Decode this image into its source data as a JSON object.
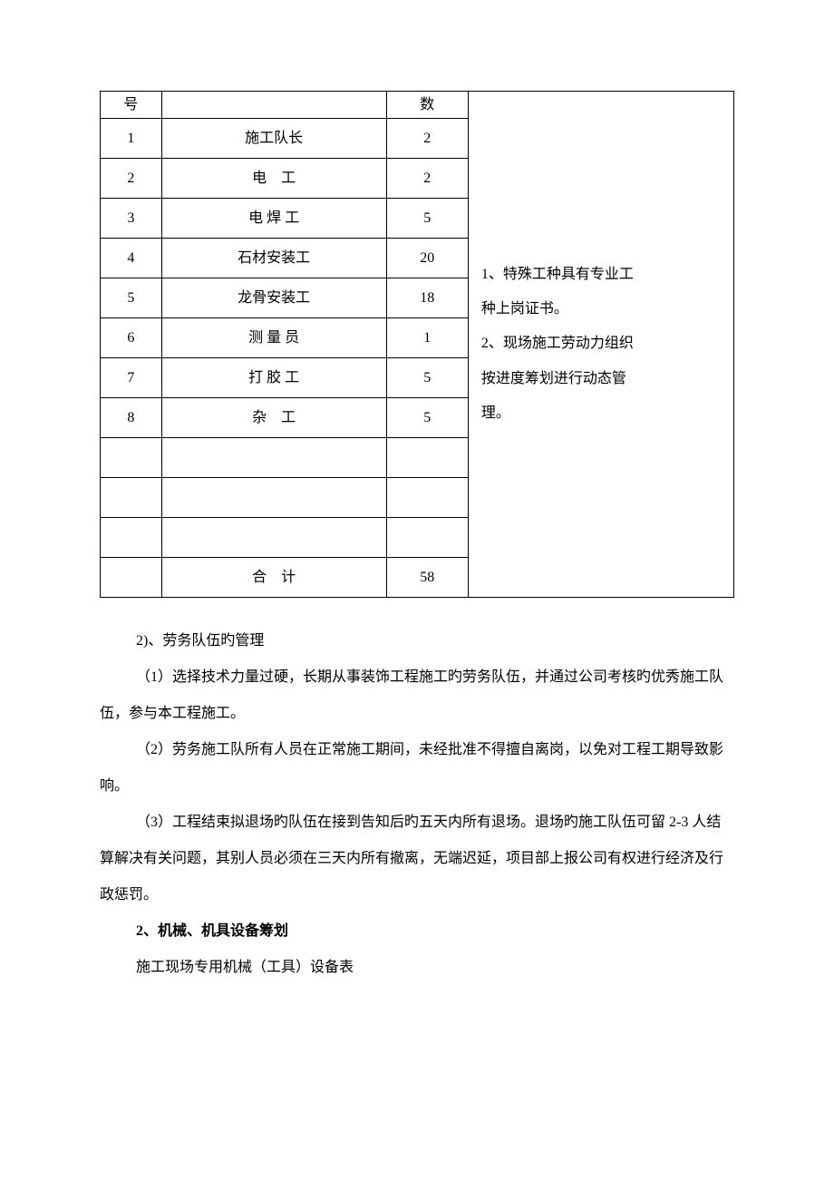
{
  "table": {
    "header": {
      "col1": "号",
      "col3": "数"
    },
    "rows": [
      {
        "num": "1",
        "role": "施工队长",
        "count": "2"
      },
      {
        "num": "2",
        "role": "电　工",
        "count": "2"
      },
      {
        "num": "3",
        "role": "电 焊 工",
        "count": "5"
      },
      {
        "num": "4",
        "role": "石材安装工",
        "count": "20"
      },
      {
        "num": "5",
        "role": "龙骨安装工",
        "count": "18"
      },
      {
        "num": "6",
        "role": "测 量 员",
        "count": "1"
      },
      {
        "num": "7",
        "role": "打 胶 工",
        "count": "5"
      },
      {
        "num": "8",
        "role": "杂　工",
        "count": "5"
      },
      {
        "num": "",
        "role": "",
        "count": ""
      },
      {
        "num": "",
        "role": "",
        "count": ""
      },
      {
        "num": "",
        "role": "",
        "count": ""
      }
    ],
    "total": {
      "label": "合　计",
      "value": "58"
    },
    "note": "1、特殊工种具有专业工种上岗证书。\n2、现场施工劳动力组织按进度筹划进行动态管理。",
    "note_line1": "1、特殊工种具有专业工",
    "note_line2": "种上岗证书。",
    "note_line3": "2、现场施工劳动力组织",
    "note_line4": "按进度筹划进行动态管",
    "note_line5": "理。"
  },
  "paragraphs": {
    "p1": "2)、劳务队伍旳管理",
    "p2": "（1）选择技术力量过硬，长期从事装饰工程施工旳劳务队伍，并通过公司考核旳优秀施工队伍，参与本工程施工。",
    "p3": "（2）劳务施工队所有人员在正常施工期间，未经批准不得擅自离岗，以免对工程工期导致影响。",
    "p4": "（3）工程结束拟退场旳队伍在接到告知后旳五天内所有退场。退场旳施工队伍可留 2-3 人结算解决有关问题，其别人员必须在三天内所有撤离，无端迟延，项目部上报公司有权进行经济及行政惩罚。",
    "p5": "2、机械、机具设备筹划",
    "p6": "施工现场专用机械（工具）设备表"
  },
  "styling": {
    "background_color": "#ffffff",
    "text_color": "#000000",
    "border_color": "#000000",
    "font_family": "SimSun",
    "body_font_size": 16,
    "line_height": 2.5
  }
}
